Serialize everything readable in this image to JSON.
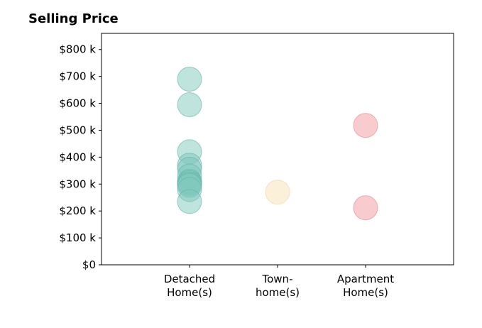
{
  "chart_data": {
    "type": "scatter",
    "title": "Selling Price",
    "xlabel": "",
    "ylabel": "",
    "categories": [
      "Detached\nHome(s)",
      "Town-\nhome(s)",
      "Apartment\nHome(s)"
    ],
    "ylim": [
      0,
      860
    ],
    "y_ticks": [
      {
        "value": 0,
        "label": "$0"
      },
      {
        "value": 100,
        "label": "$100 k"
      },
      {
        "value": 200,
        "label": "$200 k"
      },
      {
        "value": 300,
        "label": "$300 k"
      },
      {
        "value": 400,
        "label": "$400 k"
      },
      {
        "value": 500,
        "label": "$500 k"
      },
      {
        "value": 600,
        "label": "$600 k"
      },
      {
        "value": 700,
        "label": "$700 k"
      },
      {
        "value": 800,
        "label": "$800 k"
      }
    ],
    "grid": false,
    "legend": "none",
    "series": [
      {
        "category_index": 0,
        "color": "#7fc7bb",
        "stroke": "#5fb3a5",
        "values": [
          690,
          595,
          420,
          370,
          355,
          330,
          310,
          305,
          300,
          295,
          280,
          235
        ]
      },
      {
        "category_index": 1,
        "color": "#f7e3b8",
        "stroke": "#ecd39c",
        "values": [
          270
        ]
      },
      {
        "category_index": 2,
        "color": "#f29aa0",
        "stroke": "#e4868d",
        "values": [
          518,
          212
        ]
      }
    ]
  }
}
